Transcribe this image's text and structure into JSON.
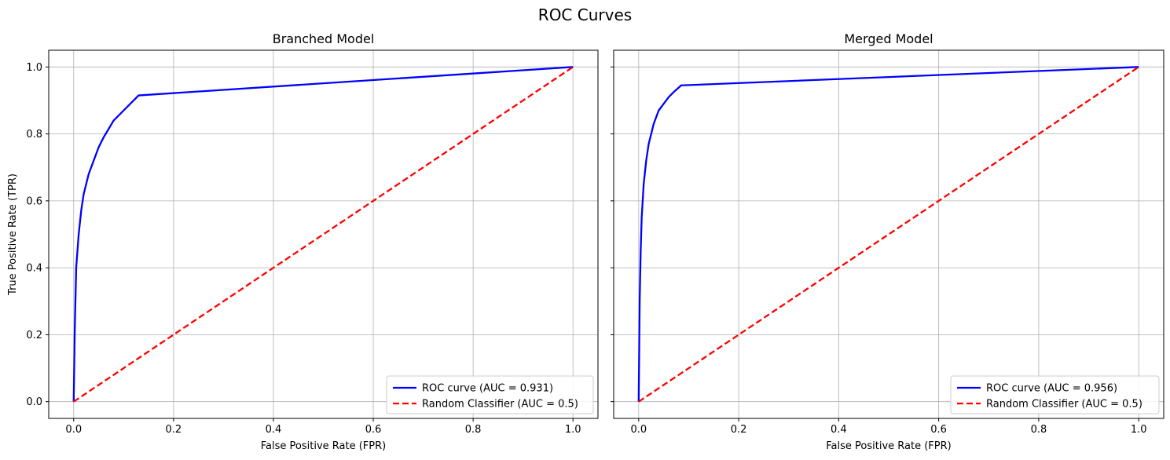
{
  "title": "ROC Curves",
  "colors": {
    "roc": "#0000ff",
    "random": "#ff0000",
    "grid": "#b0b0b0"
  },
  "chart_data": [
    {
      "type": "line",
      "title": "Branched Model",
      "xlabel": "False Positive Rate (FPR)",
      "ylabel": "True Positive Rate (TPR)",
      "xlim": [
        -0.05,
        1.05
      ],
      "ylim": [
        -0.05,
        1.05
      ],
      "xticks": [
        0.0,
        0.2,
        0.4,
        0.6,
        0.8,
        1.0
      ],
      "yticks": [
        0.0,
        0.2,
        0.4,
        0.6,
        0.8,
        1.0
      ],
      "xtick_labels": [
        "0.0",
        "0.2",
        "0.4",
        "0.6",
        "0.8",
        "1.0"
      ],
      "ytick_labels": [
        "0.0",
        "0.2",
        "0.4",
        "0.6",
        "0.8",
        "1.0"
      ],
      "grid": true,
      "legend": "lower-right",
      "series": [
        {
          "name": "ROC curve (AUC = 0.931)",
          "style": "solid",
          "x": [
            0,
            0.002,
            0.005,
            0.01,
            0.015,
            0.02,
            0.03,
            0.04,
            0.05,
            0.06,
            0.08,
            0.1,
            0.13,
            1.0
          ],
          "y": [
            0,
            0.2,
            0.4,
            0.5,
            0.57,
            0.62,
            0.68,
            0.72,
            0.76,
            0.79,
            0.84,
            0.87,
            0.915,
            1.0
          ]
        },
        {
          "name": "Random Classifier (AUC = 0.5)",
          "style": "dashed",
          "x": [
            0,
            1
          ],
          "y": [
            0,
            1
          ]
        }
      ]
    },
    {
      "type": "line",
      "title": "Merged Model",
      "xlabel": "False Positive Rate (FPR)",
      "ylabel": "",
      "xlim": [
        -0.05,
        1.05
      ],
      "ylim": [
        -0.05,
        1.05
      ],
      "xticks": [
        0.0,
        0.2,
        0.4,
        0.6,
        0.8,
        1.0
      ],
      "yticks": [
        0.0,
        0.2,
        0.4,
        0.6,
        0.8,
        1.0
      ],
      "xtick_labels": [
        "0.0",
        "0.2",
        "0.4",
        "0.6",
        "0.8",
        "1.0"
      ],
      "ytick_labels": [],
      "grid": true,
      "legend": "lower-right",
      "series": [
        {
          "name": "ROC curve (AUC = 0.956)",
          "style": "solid",
          "x": [
            0,
            0.002,
            0.004,
            0.006,
            0.01,
            0.015,
            0.02,
            0.03,
            0.04,
            0.05,
            0.06,
            0.07,
            0.085,
            1.0
          ],
          "y": [
            0,
            0.3,
            0.45,
            0.55,
            0.65,
            0.72,
            0.77,
            0.83,
            0.87,
            0.89,
            0.91,
            0.925,
            0.945,
            1.0
          ]
        },
        {
          "name": "Random Classifier (AUC = 0.5)",
          "style": "dashed",
          "x": [
            0,
            1
          ],
          "y": [
            0,
            1
          ]
        }
      ]
    }
  ]
}
